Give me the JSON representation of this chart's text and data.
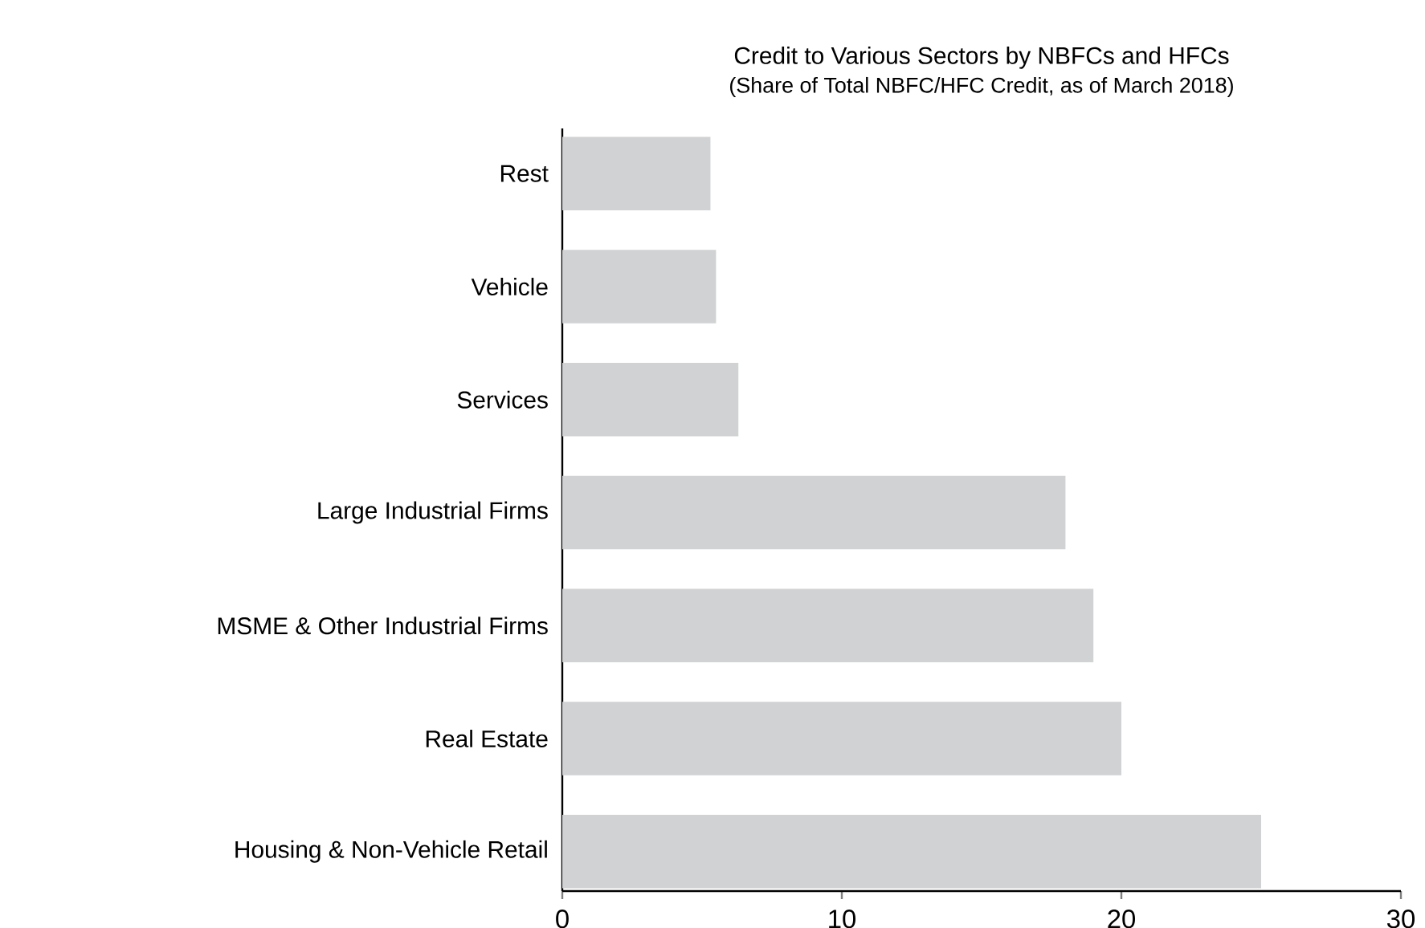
{
  "chart_data": {
    "type": "bar",
    "orientation": "horizontal",
    "title": "Credit to Various Sectors by NBFCs and HFCs",
    "subtitle": "(Share of Total NBFC/HFC Credit, as of March 2018)",
    "categories": [
      "Rest",
      "Vehicle",
      "Services",
      "Large Industrial Firms",
      "MSME & Other Industrial Firms",
      "Real Estate",
      "Housing & Non-Vehicle Retail"
    ],
    "values": [
      5.3,
      5.5,
      6.3,
      18,
      19,
      20,
      25
    ],
    "color": "#d1d2d4",
    "xlim": [
      0,
      30
    ],
    "xticks": [
      0,
      10,
      20,
      30
    ],
    "grid": false
  }
}
